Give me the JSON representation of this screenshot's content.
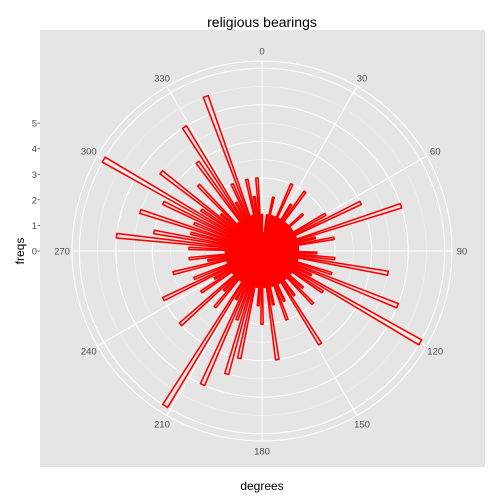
{
  "chart_data": {
    "type": "polar-bar",
    "title": "religious bearings",
    "xlabel": "degrees",
    "ylabel": "freqs",
    "angle_ticks": [
      "0",
      "30",
      "60",
      "90",
      "120",
      "150",
      "180",
      "210",
      "240",
      "270",
      "300",
      "330"
    ],
    "angle_tick_values": [
      0,
      30,
      60,
      90,
      120,
      150,
      180,
      210,
      240,
      270,
      300,
      330
    ],
    "radial_ticks": [
      "0",
      "1",
      "2",
      "3",
      "4",
      "5"
    ],
    "radial_tick_values": [
      0,
      1,
      2,
      3,
      4,
      5
    ],
    "rlim": [
      0,
      5.2
    ],
    "angle_range": [
      0,
      360
    ],
    "bar_color": "#ff0000",
    "panel_color": "#e5e5e5",
    "grid_color": "#ffffff",
    "grid": true,
    "bars": [
      {
        "angle": 0,
        "freq": 1
      },
      {
        "angle": 4,
        "freq": 0.5
      },
      {
        "angle": 8,
        "freq": 1
      },
      {
        "angle": 12,
        "freq": 1.5
      },
      {
        "angle": 16,
        "freq": 1
      },
      {
        "angle": 20,
        "freq": 1
      },
      {
        "angle": 24,
        "freq": 2
      },
      {
        "angle": 28,
        "freq": 1
      },
      {
        "angle": 32,
        "freq": 1.5
      },
      {
        "angle": 36,
        "freq": 2
      },
      {
        "angle": 40,
        "freq": 1
      },
      {
        "angle": 44,
        "freq": 1
      },
      {
        "angle": 48,
        "freq": 1.5
      },
      {
        "angle": 52,
        "freq": 1
      },
      {
        "angle": 56,
        "freq": 1
      },
      {
        "angle": 60,
        "freq": 2
      },
      {
        "angle": 64,
        "freq": 3
      },
      {
        "angle": 68,
        "freq": 1
      },
      {
        "angle": 72,
        "freq": 4
      },
      {
        "angle": 76,
        "freq": 1.5
      },
      {
        "angle": 80,
        "freq": 2
      },
      {
        "angle": 84,
        "freq": 1
      },
      {
        "angle": 88,
        "freq": 1
      },
      {
        "angle": 92,
        "freq": 1.5
      },
      {
        "angle": 96,
        "freq": 2
      },
      {
        "angle": 100,
        "freq": 3.5
      },
      {
        "angle": 104,
        "freq": 1
      },
      {
        "angle": 108,
        "freq": 2
      },
      {
        "angle": 112,
        "freq": 4
      },
      {
        "angle": 116,
        "freq": 1.5
      },
      {
        "angle": 120,
        "freq": 5
      },
      {
        "angle": 124,
        "freq": 2
      },
      {
        "angle": 128,
        "freq": 1
      },
      {
        "angle": 132,
        "freq": 1.5
      },
      {
        "angle": 136,
        "freq": 2
      },
      {
        "angle": 140,
        "freq": 1
      },
      {
        "angle": 144,
        "freq": 1.5
      },
      {
        "angle": 148,
        "freq": 3
      },
      {
        "angle": 152,
        "freq": 1
      },
      {
        "angle": 156,
        "freq": 1.5
      },
      {
        "angle": 160,
        "freq": 2
      },
      {
        "angle": 164,
        "freq": 1
      },
      {
        "angle": 168,
        "freq": 1.5
      },
      {
        "angle": 172,
        "freq": 3
      },
      {
        "angle": 176,
        "freq": 1
      },
      {
        "angle": 180,
        "freq": 2
      },
      {
        "angle": 184,
        "freq": 1.5
      },
      {
        "angle": 188,
        "freq": 1
      },
      {
        "angle": 192,
        "freq": 3
      },
      {
        "angle": 196,
        "freq": 3.5
      },
      {
        "angle": 200,
        "freq": 2
      },
      {
        "angle": 204,
        "freq": 4
      },
      {
        "angle": 208,
        "freq": 1.5
      },
      {
        "angle": 212,
        "freq": 5
      },
      {
        "angle": 216,
        "freq": 1
      },
      {
        "angle": 220,
        "freq": 2
      },
      {
        "angle": 224,
        "freq": 1.5
      },
      {
        "angle": 228,
        "freq": 3
      },
      {
        "angle": 232,
        "freq": 1
      },
      {
        "angle": 236,
        "freq": 2
      },
      {
        "angle": 240,
        "freq": 1.5
      },
      {
        "angle": 244,
        "freq": 3
      },
      {
        "angle": 248,
        "freq": 2
      },
      {
        "angle": 252,
        "freq": 1
      },
      {
        "angle": 256,
        "freq": 2.5
      },
      {
        "angle": 260,
        "freq": 1.5
      },
      {
        "angle": 264,
        "freq": 2
      },
      {
        "angle": 268,
        "freq": 1
      },
      {
        "angle": 272,
        "freq": 2
      },
      {
        "angle": 276,
        "freq": 4
      },
      {
        "angle": 280,
        "freq": 3
      },
      {
        "angle": 284,
        "freq": 2
      },
      {
        "angle": 288,
        "freq": 3.5
      },
      {
        "angle": 292,
        "freq": 2
      },
      {
        "angle": 296,
        "freq": 3
      },
      {
        "angle": 300,
        "freq": 5
      },
      {
        "angle": 304,
        "freq": 2
      },
      {
        "angle": 308,
        "freq": 3.5
      },
      {
        "angle": 312,
        "freq": 1.5
      },
      {
        "angle": 316,
        "freq": 2.5
      },
      {
        "angle": 320,
        "freq": 1
      },
      {
        "angle": 324,
        "freq": 3
      },
      {
        "angle": 328,
        "freq": 4
      },
      {
        "angle": 332,
        "freq": 1.5
      },
      {
        "angle": 336,
        "freq": 2
      },
      {
        "angle": 340,
        "freq": 4.5
      },
      {
        "angle": 344,
        "freq": 1
      },
      {
        "angle": 348,
        "freq": 2
      },
      {
        "angle": 352,
        "freq": 1.5
      },
      {
        "angle": 356,
        "freq": 2
      }
    ]
  }
}
